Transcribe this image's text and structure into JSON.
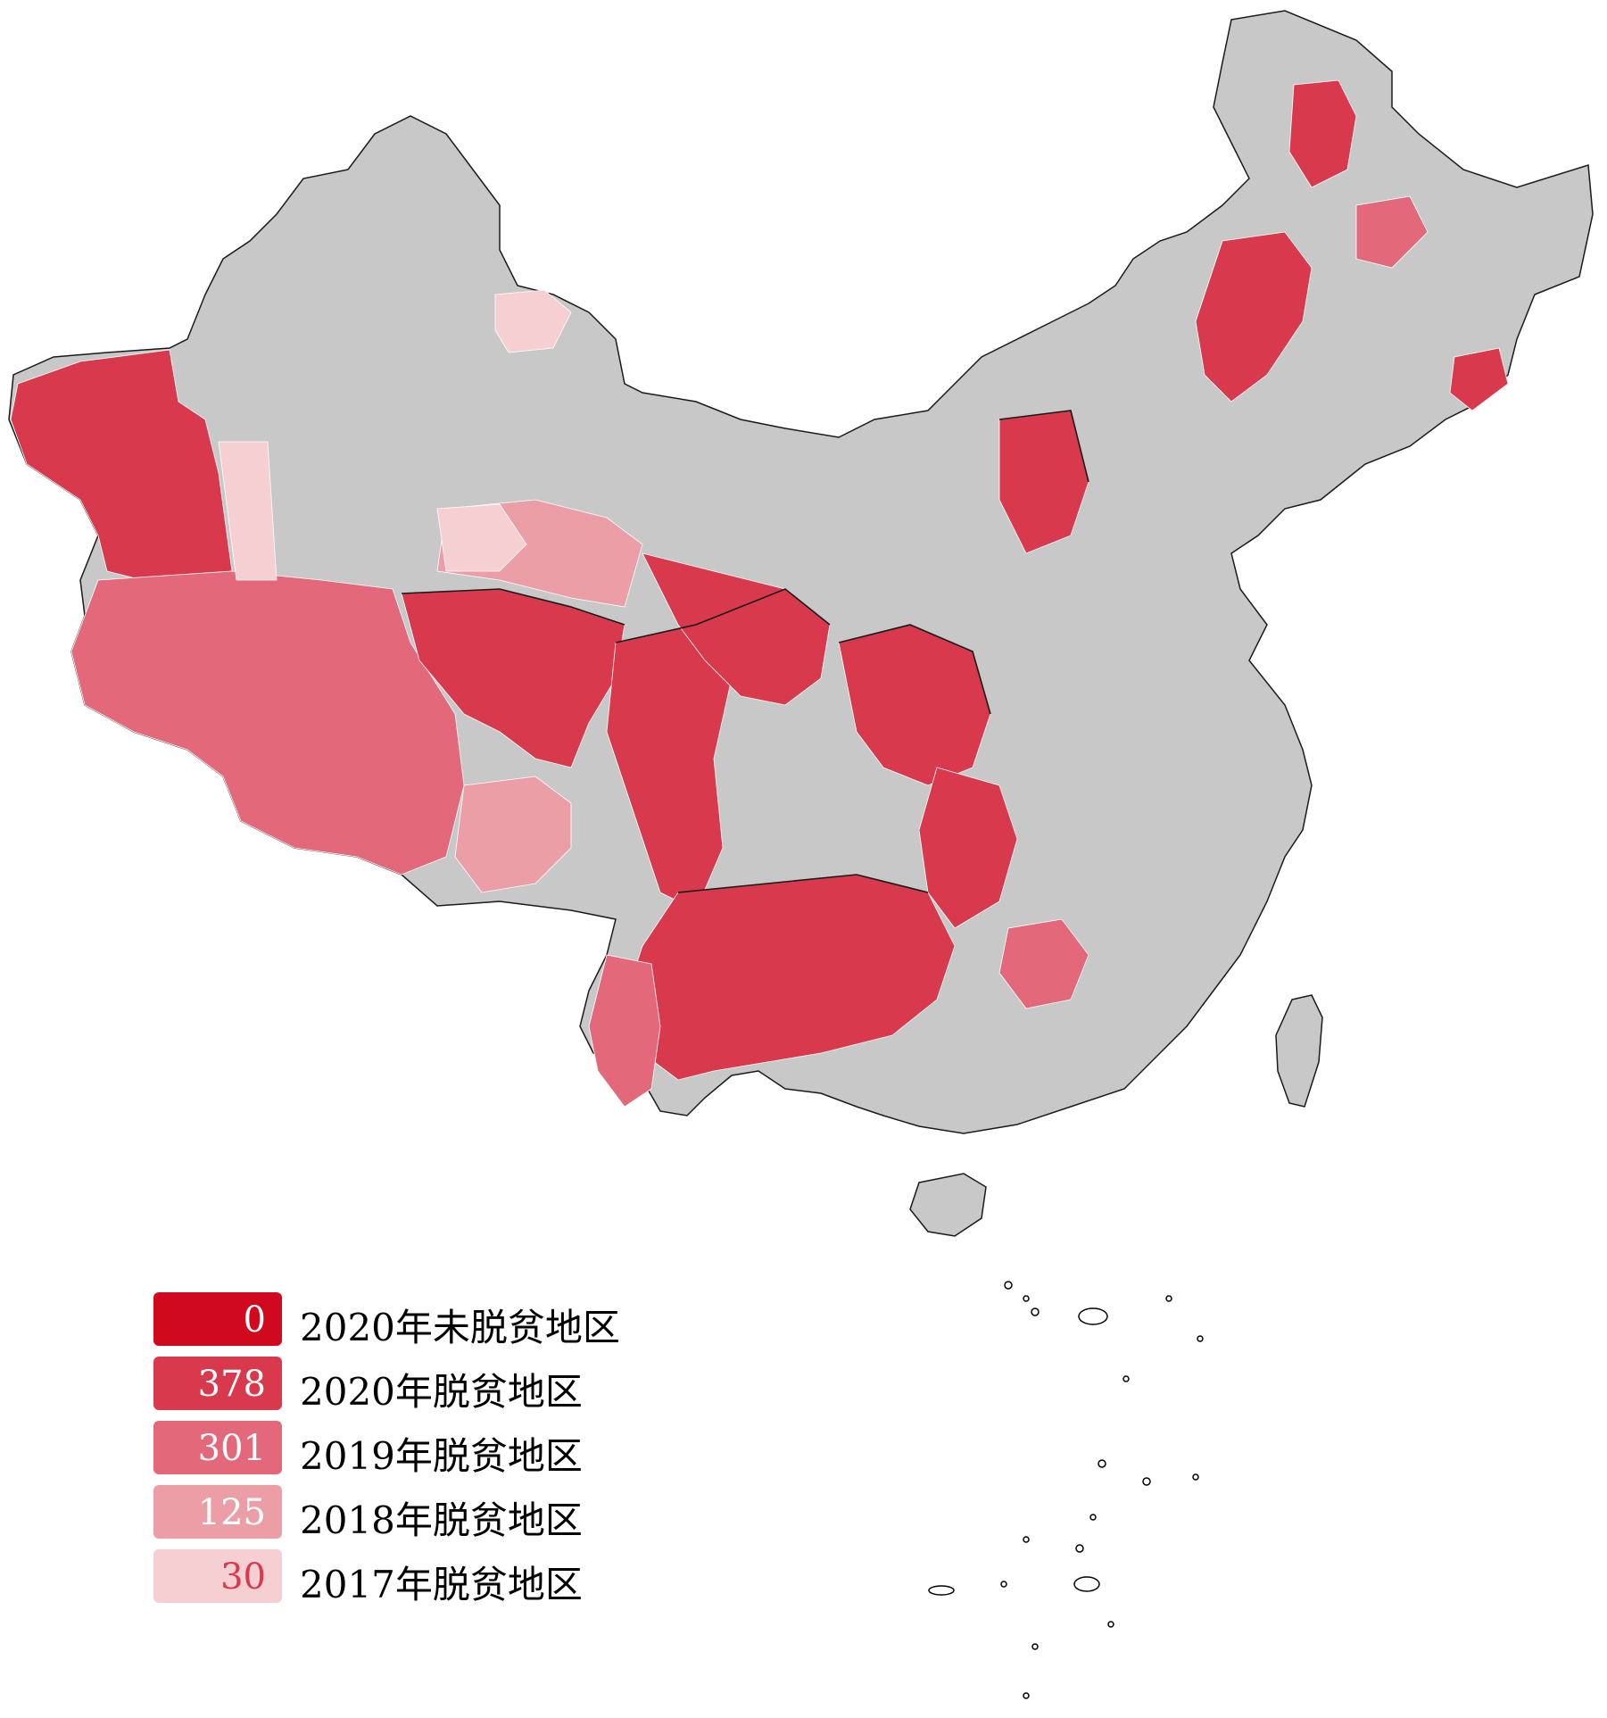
{
  "map": {
    "colors": {
      "land": "#c8c8c8",
      "county_border": "#ffffff",
      "province_border": "#1a1a1a",
      "island_outline": "#000000"
    }
  },
  "legend": {
    "items": [
      {
        "count": "0",
        "label": "2020年未脱贫地区",
        "color": "#d0091e",
        "text_color": "#ffffff"
      },
      {
        "count": "378",
        "label": "2020年脱贫地区",
        "color": "#d8394d",
        "text_color": "#ffffff"
      },
      {
        "count": "301",
        "label": "2019年脱贫地区",
        "color": "#e3687a",
        "text_color": "#ffffff"
      },
      {
        "count": "125",
        "label": "2018年脱贫地区",
        "color": "#ec9ea7",
        "text_color": "#ffffff"
      },
      {
        "count": "30",
        "label": "2017年脱贫地区",
        "color": "#f6cfd3",
        "text_color": "#d8394d"
      }
    ]
  }
}
